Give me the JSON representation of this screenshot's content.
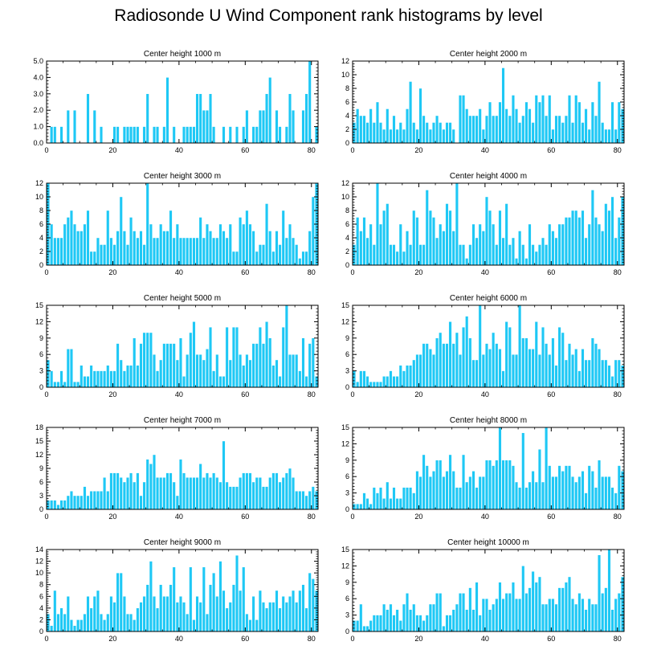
{
  "figure_title": "Radiosonde U Wind Component rank histograms by level",
  "colors": {
    "bar_fill": "#1EC8F5",
    "bar_stroke": "#ffffff",
    "axis": "#000000"
  },
  "chart_data": [
    {
      "type": "bar",
      "title": "Center height 1000 m",
      "x_ticks": [
        "0",
        "20",
        "40",
        "60",
        "80"
      ],
      "xlim": [
        0,
        82
      ],
      "ylim": [
        0,
        5
      ],
      "y_ticks": [
        "0.0",
        "1.0",
        "2.0",
        "3.0",
        "4.0",
        "5.0"
      ],
      "values": [
        0,
        1,
        1,
        0,
        1,
        0,
        2,
        0,
        2,
        0,
        0,
        0,
        3,
        0,
        2,
        0,
        1,
        0,
        0,
        0,
        1,
        1,
        0,
        1,
        1,
        1,
        1,
        1,
        0,
        1,
        3,
        0,
        1,
        1,
        0,
        1,
        4,
        0,
        1,
        0,
        0,
        1,
        1,
        1,
        1,
        3,
        3,
        2,
        2,
        3,
        1,
        0,
        0,
        1,
        0,
        1,
        0,
        1,
        0,
        1,
        2,
        0,
        1,
        1,
        2,
        2,
        3,
        4,
        0,
        2,
        1,
        0,
        1,
        3,
        2,
        0,
        0,
        2,
        3,
        5,
        0,
        1
      ]
    },
    {
      "type": "bar",
      "title": "Center height 2000 m",
      "x_ticks": [
        "0",
        "20",
        "40",
        "60",
        "80"
      ],
      "xlim": [
        0,
        82
      ],
      "ylim": [
        0,
        12
      ],
      "y_ticks": [
        "0",
        "2",
        "4",
        "6",
        "8",
        "10",
        "12"
      ],
      "values": [
        3,
        5,
        4,
        4,
        3,
        5,
        3,
        6,
        3,
        2,
        5,
        2,
        4,
        2,
        3,
        2,
        5,
        9,
        3,
        2,
        8,
        4,
        3,
        2,
        3,
        4,
        3,
        2,
        3,
        3,
        2,
        0,
        7,
        7,
        5,
        4,
        4,
        4,
        5,
        2,
        4,
        6,
        4,
        4,
        6,
        11,
        5,
        4,
        7,
        5,
        3,
        4,
        6,
        5,
        3,
        7,
        6,
        7,
        4,
        7,
        2,
        4,
        4,
        3,
        4,
        7,
        3,
        7,
        6,
        3,
        5,
        2,
        6,
        4,
        9,
        3,
        2,
        2,
        6,
        2,
        6,
        5
      ]
    },
    {
      "type": "bar",
      "title": "Center height 3000 m",
      "x_ticks": [
        "0",
        "20",
        "40",
        "60",
        "80"
      ],
      "xlim": [
        0,
        82
      ],
      "ylim": [
        0,
        12
      ],
      "y_ticks": [
        "0",
        "2",
        "4",
        "6",
        "8",
        "10",
        "12"
      ],
      "values": [
        12,
        6,
        4,
        4,
        4,
        6,
        7,
        8,
        6,
        5,
        5,
        6,
        8,
        2,
        2,
        4,
        3,
        3,
        8,
        4,
        3,
        5,
        10,
        5,
        3,
        7,
        5,
        4,
        5,
        3,
        12,
        6,
        4,
        4,
        6,
        5,
        5,
        8,
        4,
        6,
        4,
        4,
        4,
        4,
        4,
        4,
        7,
        4,
        6,
        5,
        4,
        4,
        6,
        5,
        4,
        6,
        2,
        2,
        7,
        6,
        8,
        6,
        5,
        2,
        3,
        3,
        9,
        5,
        2,
        5,
        3,
        8,
        4,
        6,
        4,
        3,
        1,
        2,
        2,
        5,
        10,
        12
      ]
    },
    {
      "type": "bar",
      "title": "Center height 4000 m",
      "x_ticks": [
        "0",
        "20",
        "40",
        "60",
        "80"
      ],
      "xlim": [
        0,
        82
      ],
      "ylim": [
        0,
        12
      ],
      "y_ticks": [
        "0",
        "2",
        "4",
        "6",
        "8",
        "10",
        "12"
      ],
      "values": [
        3,
        7,
        5,
        7,
        4,
        6,
        3,
        12,
        6,
        8,
        9,
        3,
        3,
        2,
        6,
        2,
        5,
        3,
        8,
        7,
        3,
        3,
        11,
        8,
        7,
        4,
        6,
        5,
        9,
        8,
        5,
        12,
        3,
        3,
        1,
        3,
        6,
        4,
        6,
        5,
        10,
        8,
        6,
        3,
        8,
        4,
        9,
        3,
        4,
        1,
        5,
        3,
        1,
        6,
        3,
        2,
        3,
        4,
        3,
        6,
        5,
        4,
        6,
        6,
        7,
        7,
        8,
        8,
        7,
        8,
        4,
        6,
        11,
        7,
        6,
        5,
        9,
        8,
        10,
        4,
        7,
        10
      ]
    },
    {
      "type": "bar",
      "title": "Center height 5000 m",
      "x_ticks": [
        "0",
        "20",
        "40",
        "60",
        "80"
      ],
      "xlim": [
        0,
        82
      ],
      "ylim": [
        0,
        15
      ],
      "y_ticks": [
        "0",
        "3",
        "6",
        "9",
        "12",
        "15"
      ],
      "values": [
        5,
        3,
        1,
        1,
        3,
        1,
        7,
        7,
        1,
        1,
        4,
        2,
        2,
        4,
        3,
        3,
        3,
        3,
        4,
        3,
        3,
        8,
        5,
        3,
        4,
        4,
        9,
        4,
        8,
        10,
        10,
        10,
        6,
        3,
        5,
        8,
        8,
        8,
        8,
        5,
        9,
        2,
        6,
        10,
        12,
        6,
        6,
        5,
        7,
        11,
        3,
        6,
        2,
        2,
        11,
        5,
        11,
        11,
        6,
        4,
        6,
        5,
        8,
        8,
        11,
        8,
        12,
        9,
        4,
        5,
        2,
        11,
        15,
        6,
        6,
        6,
        3,
        9,
        2,
        8,
        9,
        2
      ]
    },
    {
      "type": "bar",
      "title": "Center height 6000 m",
      "x_ticks": [
        "0",
        "20",
        "40",
        "60",
        "80"
      ],
      "xlim": [
        0,
        82
      ],
      "ylim": [
        0,
        15
      ],
      "y_ticks": [
        "0",
        "3",
        "6",
        "9",
        "12",
        "15"
      ],
      "values": [
        3,
        1,
        3,
        3,
        2,
        1,
        1,
        1,
        1,
        2,
        2,
        3,
        2,
        2,
        4,
        3,
        4,
        4,
        5,
        6,
        6,
        8,
        8,
        7,
        6,
        9,
        10,
        8,
        8,
        12,
        8,
        10,
        6,
        11,
        13,
        9,
        5,
        5,
        15,
        6,
        8,
        7,
        10,
        8,
        7,
        3,
        12,
        11,
        6,
        6,
        15,
        9,
        9,
        7,
        7,
        12,
        6,
        11,
        8,
        6,
        9,
        4,
        11,
        10,
        5,
        8,
        6,
        7,
        3,
        7,
        5,
        5,
        9,
        8,
        7,
        5,
        5,
        4,
        2,
        5,
        5,
        4
      ]
    },
    {
      "type": "bar",
      "title": "Center height 7000 m",
      "x_ticks": [
        "0",
        "20",
        "40",
        "60",
        "80"
      ],
      "xlim": [
        0,
        82
      ],
      "ylim": [
        0,
        18
      ],
      "y_ticks": [
        "0",
        "3",
        "6",
        "9",
        "12",
        "15",
        "18"
      ],
      "values": [
        2,
        2,
        2,
        1,
        2,
        2,
        3,
        4,
        3,
        3,
        3,
        5,
        3,
        4,
        4,
        4,
        4,
        7,
        4,
        8,
        8,
        8,
        7,
        6,
        7,
        8,
        6,
        8,
        3,
        6,
        11,
        10,
        12,
        7,
        7,
        7,
        8,
        8,
        6,
        3,
        11,
        8,
        7,
        7,
        7,
        7,
        10,
        7,
        8,
        7,
        8,
        7,
        6,
        15,
        6,
        5,
        5,
        5,
        7,
        8,
        8,
        8,
        6,
        7,
        7,
        5,
        5,
        7,
        8,
        8,
        6,
        7,
        8,
        9,
        7,
        4,
        4,
        4,
        3,
        4,
        5,
        4
      ]
    },
    {
      "type": "bar",
      "title": "Center height 8000 m",
      "x_ticks": [
        "0",
        "20",
        "40",
        "60",
        "80"
      ],
      "xlim": [
        0,
        82
      ],
      "ylim": [
        0,
        15
      ],
      "y_ticks": [
        "0",
        "3",
        "6",
        "9",
        "12",
        "15"
      ],
      "values": [
        1,
        1,
        1,
        3,
        2,
        1,
        4,
        3,
        4,
        2,
        5,
        2,
        4,
        2,
        2,
        4,
        4,
        4,
        3,
        7,
        6,
        10,
        8,
        6,
        7,
        9,
        9,
        6,
        7,
        10,
        7,
        4,
        4,
        10,
        5,
        6,
        7,
        4,
        6,
        6,
        9,
        9,
        8,
        9,
        15,
        9,
        9,
        9,
        8,
        5,
        4,
        14,
        4,
        5,
        7,
        5,
        11,
        5,
        15,
        8,
        6,
        6,
        8,
        7,
        8,
        8,
        6,
        5,
        6,
        7,
        3,
        8,
        7,
        4,
        9,
        6,
        6,
        6,
        4,
        3,
        8,
        7
      ]
    },
    {
      "type": "bar",
      "title": "Center height 9000 m",
      "x_ticks": [
        "0",
        "20",
        "40",
        "60",
        "80"
      ],
      "xlim": [
        0,
        82
      ],
      "ylim": [
        0,
        14
      ],
      "y_ticks": [
        "0",
        "2",
        "4",
        "6",
        "8",
        "10",
        "12",
        "14"
      ],
      "values": [
        3,
        1,
        7,
        3,
        4,
        3,
        6,
        2,
        1,
        2,
        2,
        3,
        6,
        4,
        6,
        7,
        3,
        2,
        3,
        6,
        5,
        10,
        10,
        6,
        3,
        3,
        2,
        4,
        5,
        6,
        8,
        12,
        6,
        4,
        8,
        6,
        6,
        8,
        11,
        5,
        6,
        5,
        3,
        11,
        2,
        6,
        5,
        11,
        3,
        8,
        10,
        6,
        12,
        7,
        4,
        5,
        8,
        13,
        7,
        11,
        3,
        2,
        6,
        2,
        7,
        5,
        4,
        5,
        5,
        7,
        4,
        6,
        5,
        6,
        7,
        5,
        7,
        8,
        4,
        10,
        9,
        7
      ]
    },
    {
      "type": "bar",
      "title": "Center height 10000 m",
      "x_ticks": [
        "0",
        "20",
        "40",
        "60",
        "80"
      ],
      "xlim": [
        0,
        82
      ],
      "ylim": [
        0,
        15
      ],
      "y_ticks": [
        "0",
        "3",
        "6",
        "9",
        "12",
        "15"
      ],
      "values": [
        2,
        2,
        5,
        1,
        1,
        2,
        3,
        3,
        3,
        5,
        4,
        5,
        3,
        4,
        2,
        5,
        7,
        4,
        5,
        3,
        3,
        2,
        3,
        5,
        5,
        7,
        7,
        1,
        3,
        3,
        4,
        5,
        7,
        7,
        4,
        8,
        4,
        9,
        3,
        6,
        6,
        4,
        5,
        6,
        9,
        6,
        7,
        7,
        9,
        6,
        6,
        12,
        7,
        8,
        11,
        9,
        10,
        5,
        5,
        6,
        6,
        5,
        8,
        8,
        9,
        10,
        6,
        5,
        7,
        6,
        4,
        6,
        5,
        5,
        14,
        7,
        8,
        15,
        4,
        6,
        7,
        10
      ]
    }
  ]
}
